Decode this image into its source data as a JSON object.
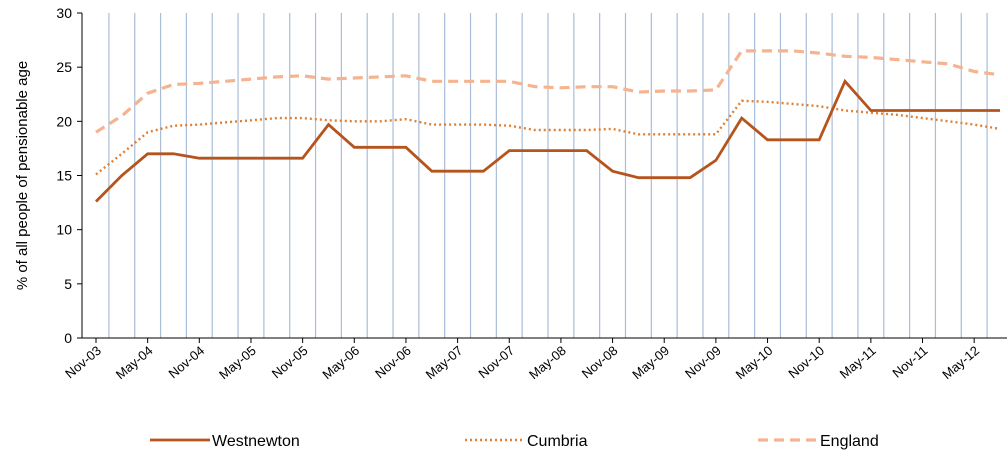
{
  "colors": {
    "westnewton": "#b5541c",
    "cumbria": "#e07f32",
    "england": "#f5b38f",
    "gridline": "#a9bdd8",
    "axis": "#000000"
  },
  "chart_data": {
    "type": "line",
    "title": "",
    "xlabel": "",
    "ylabel": "% of all people of pensionable age",
    "ylim": [
      0,
      30
    ],
    "yticks": [
      "0",
      "5",
      "10",
      "15",
      "20",
      "25",
      "30"
    ],
    "grid": "vertical",
    "legend_position": "bottom",
    "x": [
      "Nov-03",
      "Feb-04",
      "May-04",
      "Aug-04",
      "Nov-04",
      "Feb-05",
      "May-05",
      "Aug-05",
      "Nov-05",
      "Feb-06",
      "May-06",
      "Aug-06",
      "Nov-06",
      "Feb-07",
      "May-07",
      "Aug-07",
      "Nov-07",
      "Feb-08",
      "May-08",
      "Aug-08",
      "Nov-08",
      "Feb-09",
      "May-09",
      "Aug-09",
      "Nov-09",
      "Feb-10",
      "May-10",
      "Aug-10",
      "Nov-10",
      "Feb-11",
      "May-11",
      "Aug-11",
      "Nov-11",
      "Feb-12",
      "May-12",
      "Aug-12"
    ],
    "xtick_labels": [
      "Nov-03",
      "May-04",
      "Nov-04",
      "May-05",
      "Nov-05",
      "May-06",
      "Nov-06",
      "May-07",
      "Nov-07",
      "May-08",
      "Nov-08",
      "May-09",
      "Nov-09",
      "May-10",
      "Nov-10",
      "May-11",
      "Nov-11",
      "May-12"
    ],
    "series": [
      {
        "name": "Westnewton",
        "style": "solid",
        "values": [
          12.6,
          15,
          17,
          17,
          16.6,
          16.6,
          16.6,
          16.6,
          16.6,
          19.7,
          17.6,
          17.6,
          17.6,
          15.4,
          15.4,
          15.4,
          17.3,
          17.3,
          17.3,
          17.3,
          15.4,
          14.8,
          14.8,
          14.8,
          16.4,
          20.3,
          18.3,
          18.3,
          18.3,
          23.7,
          21,
          21,
          21,
          21,
          21,
          21
        ]
      },
      {
        "name": "Cumbria",
        "style": "dotted",
        "values": [
          15.1,
          17,
          19,
          19.6,
          19.7,
          19.9,
          20.1,
          20.3,
          20.3,
          20.1,
          20,
          20,
          20.2,
          19.7,
          19.7,
          19.7,
          19.6,
          19.2,
          19.2,
          19.2,
          19.3,
          18.8,
          18.8,
          18.8,
          18.8,
          21.9,
          21.8,
          21.6,
          21.4,
          21,
          20.8,
          20.6,
          20.3,
          20,
          19.7,
          19.3
        ]
      },
      {
        "name": "England",
        "style": "dashed",
        "values": [
          19,
          20.5,
          22.6,
          23.4,
          23.5,
          23.7,
          23.9,
          24.1,
          24.2,
          23.9,
          24,
          24.1,
          24.2,
          23.7,
          23.7,
          23.7,
          23.7,
          23.2,
          23.1,
          23.2,
          23.2,
          22.7,
          22.8,
          22.8,
          22.9,
          26.5,
          26.5,
          26.5,
          26.3,
          26,
          25.9,
          25.7,
          25.5,
          25.3,
          24.6,
          24.3
        ]
      }
    ]
  }
}
